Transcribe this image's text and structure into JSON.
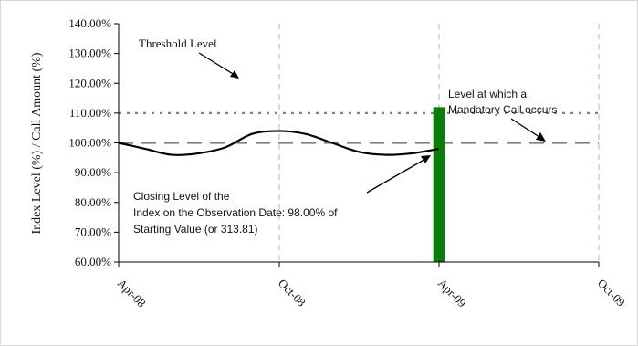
{
  "chart_data": {
    "type": "line",
    "title": "",
    "xlabel": "",
    "ylabel": "Index Level (%) / Call Amount (%)",
    "ylim": [
      60,
      140
    ],
    "y_ticks": [
      60,
      70,
      80,
      90,
      100,
      110,
      120,
      130,
      140
    ],
    "y_tick_labels": [
      "60.00%",
      "70.00%",
      "80.00%",
      "90.00%",
      "100.00%",
      "110.00%",
      "120.00%",
      "130.00%",
      "140.00%"
    ],
    "x_ticks": [
      "Apr-08",
      "Oct-08",
      "Apr-09",
      "Oct-09"
    ],
    "grid": "vertical dashed",
    "series": [
      {
        "values": [
          {
            "x": "Apr-08",
            "y": 100.0
          },
          {
            "x": "May-08",
            "y": 98.0
          },
          {
            "x": "Jun-08",
            "y": 96.0
          },
          {
            "x": "Jul-08",
            "y": 96.5
          },
          {
            "x": "Aug-08",
            "y": 98.5
          },
          {
            "x": "Sep-08",
            "y": 103.0
          },
          {
            "x": "Oct-08",
            "y": 104.0
          },
          {
            "x": "Nov-08",
            "y": 103.0
          },
          {
            "x": "Dec-08",
            "y": 100.0
          },
          {
            "x": "Jan-09",
            "y": 97.0
          },
          {
            "x": "Feb-09",
            "y": 96.0
          },
          {
            "x": "Mar-09",
            "y": 96.5
          },
          {
            "x": "Apr-09",
            "y": 98.0
          }
        ]
      }
    ],
    "reference_lines": [
      {
        "y": 110,
        "style": "dotted",
        "color": "#808080"
      },
      {
        "y": 100,
        "style": "dashed",
        "color": "#808080"
      }
    ],
    "bar": {
      "x": "Apr-09",
      "y": 112,
      "color": "#0a7d0a"
    },
    "annotations": {
      "threshold": "Threshold Level",
      "mandatory_line1": "Level at which a",
      "mandatory_line2": "Mandatory Call occurs",
      "closing_line1": "Closing Level of the",
      "closing_line2": "Index on the Observation Date: 98.00% of",
      "closing_line3": "Starting Value (or 313.81)"
    },
    "colors": {
      "series": "#000000",
      "reference": "#808080",
      "bar": "#0a7d0a"
    }
  }
}
